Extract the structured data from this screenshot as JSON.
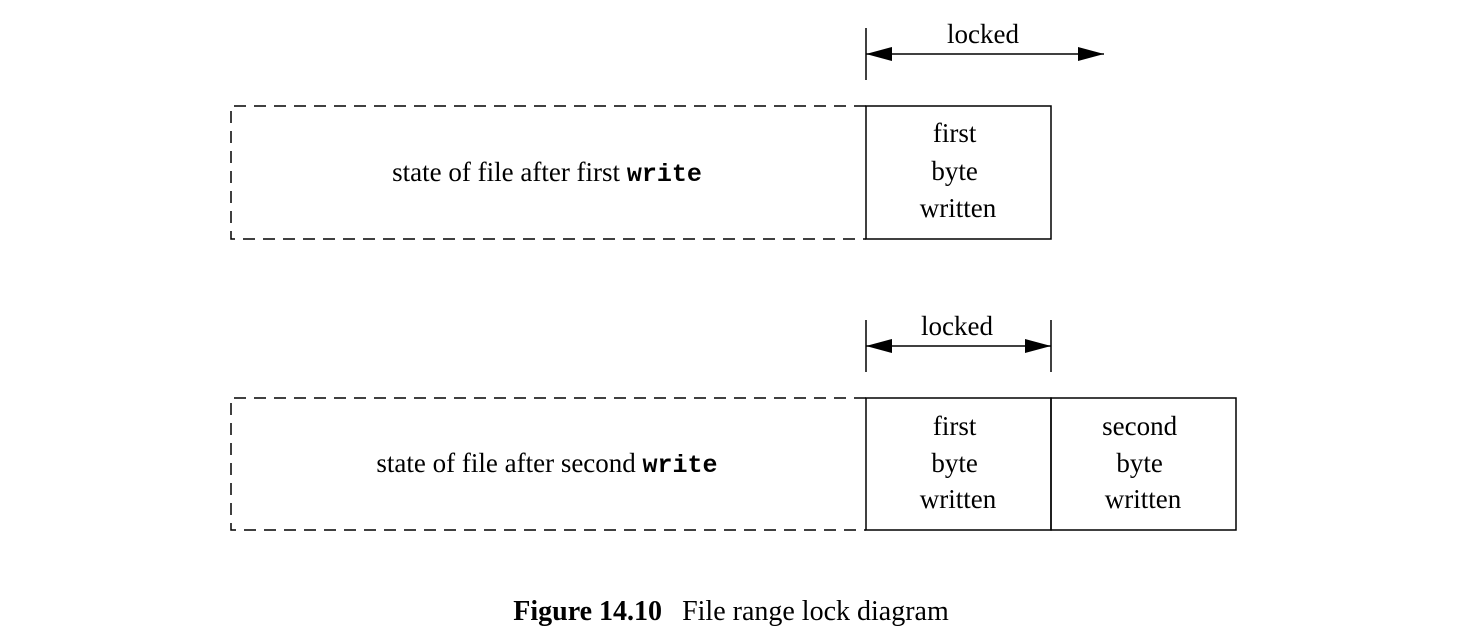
{
  "top": {
    "lock_label": "locked",
    "file_label": "state of file after first",
    "file_label_code": "write",
    "first_byte": [
      "first",
      "byte",
      "written"
    ]
  },
  "bottom": {
    "lock_label": "locked",
    "file_label": "state of file after second",
    "file_label_code": "write",
    "first_byte": [
      "first",
      "byte",
      "written"
    ],
    "second_byte": [
      "second",
      "byte",
      "written"
    ]
  },
  "caption": {
    "number": "Figure 14.10",
    "title": "File range lock diagram"
  }
}
